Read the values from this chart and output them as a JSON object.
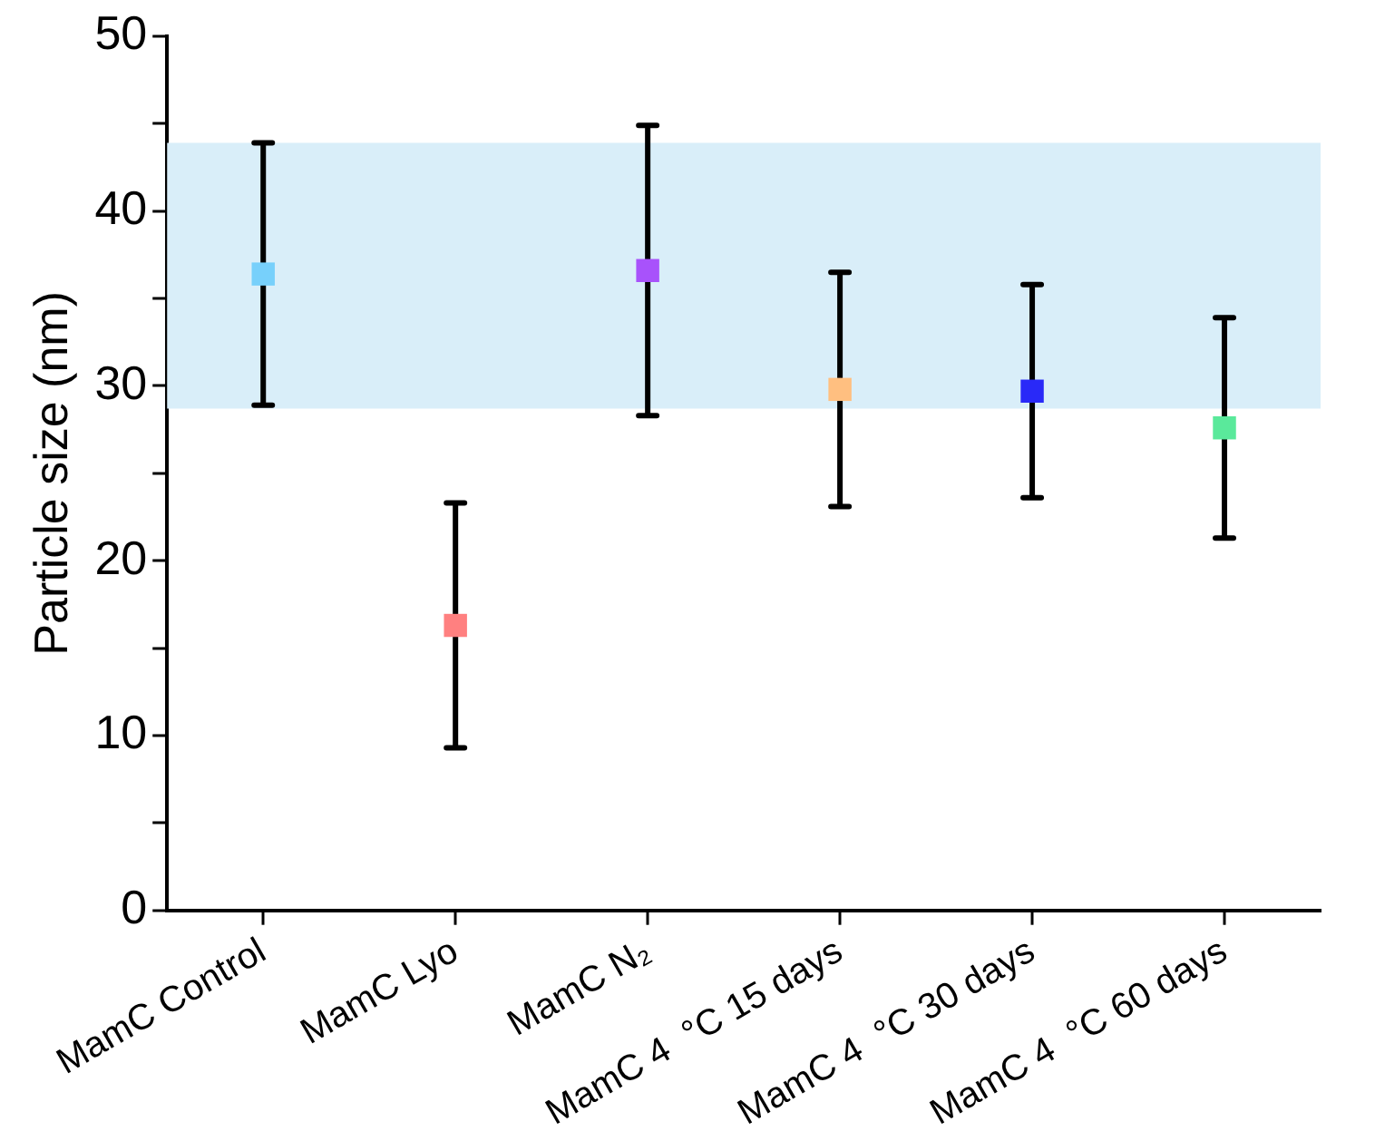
{
  "chart_data": {
    "type": "scatter",
    "ylabel": "Particle size (nm)",
    "categories": [
      "MamC Control",
      "MamC Lyo",
      "MamC N₂",
      "MamC 4  °C 15 days",
      "MamC 4  °C 30 days",
      "MamC 4  °C 60 days"
    ],
    "values": [
      36.4,
      16.3,
      36.6,
      29.8,
      29.7,
      27.6
    ],
    "errors": [
      7.5,
      7,
      8.3,
      6.7,
      6.1,
      6.3
    ],
    "colors": [
      "#77d0fb",
      "#ff8080",
      "#a852fb",
      "#ffbf80",
      "#2929f8",
      "#5ae99b"
    ],
    "marker": "square",
    "ylim": [
      0,
      50
    ],
    "yticks": [
      0,
      {
        "value": 5,
        "label": null
      },
      10,
      {
        "value": 15,
        "label": null
      },
      20,
      {
        "value": 25,
        "label": null
      },
      30,
      {
        "value": 35,
        "label": null
      },
      40,
      {
        "value": 45,
        "label": null
      },
      50
    ],
    "bands": [
      {
        "axis": "y",
        "from": 28.7,
        "to": 43.9,
        "color": "#d9eef9"
      }
    ],
    "grid": false
  }
}
